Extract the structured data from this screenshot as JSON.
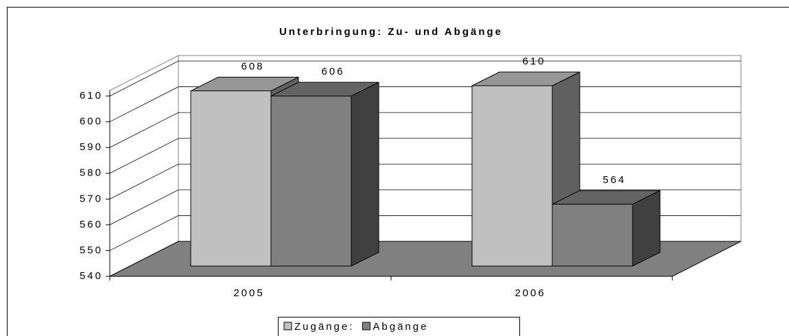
{
  "chart_data": {
    "type": "bar3d",
    "title": "Unterbringung: Zu- und Abgänge",
    "categories": [
      "2005",
      "2006"
    ],
    "series": [
      {
        "name": "Zugänge:",
        "color": "#c0c0c0",
        "values": [
          608,
          610
        ]
      },
      {
        "name": "Abgänge",
        "color": "#808080",
        "values": [
          606,
          564
        ]
      }
    ],
    "ylim": [
      540,
      610
    ],
    "yticks": [
      540,
      550,
      560,
      570,
      580,
      590,
      600,
      610
    ],
    "grid": true
  }
}
